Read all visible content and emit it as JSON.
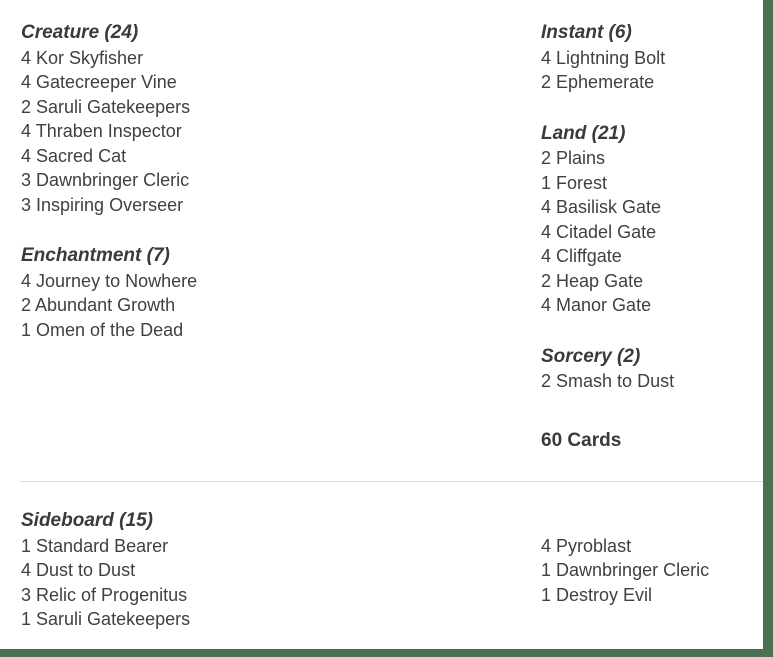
{
  "colors": {
    "accent_green": "#4a7152",
    "text": "#404040",
    "heading_text": "#3a3a3a",
    "divider": "#dcdcdc",
    "background": "#ffffff"
  },
  "deck": {
    "main": {
      "left_sections": [
        {
          "title": "Creature (24)",
          "cards": [
            {
              "qty": "4",
              "name": "Kor Skyfisher"
            },
            {
              "qty": "4",
              "name": "Gatecreeper Vine"
            },
            {
              "qty": "2",
              "name": "Saruli Gatekeepers"
            },
            {
              "qty": "4",
              "name": "Thraben Inspector"
            },
            {
              "qty": "4",
              "name": "Sacred Cat"
            },
            {
              "qty": "3",
              "name": "Dawnbringer Cleric"
            },
            {
              "qty": "3",
              "name": "Inspiring Overseer"
            }
          ]
        },
        {
          "title": "Enchantment (7)",
          "cards": [
            {
              "qty": "4",
              "name": "Journey to Nowhere"
            },
            {
              "qty": "2",
              "name": "Abundant Growth"
            },
            {
              "qty": "1",
              "name": "Omen of the Dead"
            }
          ]
        }
      ],
      "right_sections": [
        {
          "title": "Instant (6)",
          "cards": [
            {
              "qty": "4",
              "name": "Lightning Bolt"
            },
            {
              "qty": "2",
              "name": "Ephemerate"
            }
          ]
        },
        {
          "title": "Land (21)",
          "cards": [
            {
              "qty": "2",
              "name": "Plains"
            },
            {
              "qty": "1",
              "name": "Forest"
            },
            {
              "qty": "4",
              "name": "Basilisk Gate"
            },
            {
              "qty": "4",
              "name": "Citadel Gate"
            },
            {
              "qty": "4",
              "name": "Cliffgate"
            },
            {
              "qty": "2",
              "name": "Heap Gate"
            },
            {
              "qty": "4",
              "name": "Manor Gate"
            }
          ]
        },
        {
          "title": "Sorcery (2)",
          "cards": [
            {
              "qty": "2",
              "name": "Smash to Dust"
            }
          ]
        }
      ],
      "total_label": "60 Cards"
    },
    "sideboard": {
      "title": "Sideboard (15)",
      "left_cards": [
        {
          "qty": "1",
          "name": "Standard Bearer"
        },
        {
          "qty": "4",
          "name": "Dust to Dust"
        },
        {
          "qty": "3",
          "name": "Relic of Progenitus"
        },
        {
          "qty": "1",
          "name": "Saruli Gatekeepers"
        }
      ],
      "right_cards": [
        {
          "qty": "4",
          "name": "Pyroblast"
        },
        {
          "qty": "1",
          "name": "Dawnbringer Cleric"
        },
        {
          "qty": "1",
          "name": "Destroy Evil"
        }
      ]
    }
  }
}
